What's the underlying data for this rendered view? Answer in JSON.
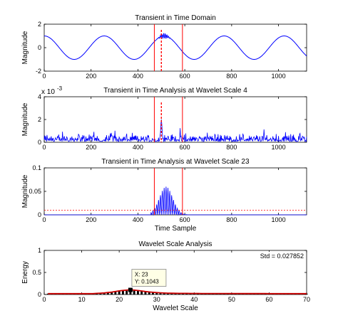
{
  "colors": {
    "signal": "#0000ff",
    "marker": "#ff0000",
    "threshold": "#ff0000",
    "energy_bars": "#000000",
    "energy_curve": "#cc0000",
    "axes": "#000000",
    "background": "#ffffff"
  },
  "chart_data": [
    {
      "type": "line",
      "title": "Transient in Time Domain",
      "xlabel": "",
      "ylabel": "Magnitude",
      "xlim": [
        0,
        1120
      ],
      "ylim": [
        -2,
        2
      ],
      "xticks": [
        "0",
        "200",
        "400",
        "600",
        "800",
        "1000"
      ],
      "yticks": [
        "-2",
        "0",
        "2"
      ],
      "series": [
        {
          "kind": "sinusoid",
          "amplitude": 1,
          "period": 256,
          "phase_deg": 90,
          "x_range": [
            0,
            1120
          ],
          "transient": {
            "center": 512,
            "width": 18,
            "amplitude": 0.25
          }
        }
      ],
      "markers": {
        "red_lines_x": [
          470,
          590
        ],
        "dashed_line_x": 500
      }
    },
    {
      "type": "line",
      "title": "Transient in Time Analysis at Wavelet Scale 4",
      "exponent_label": "x 10",
      "exponent_power": "-3",
      "xlabel": "",
      "ylabel": "Magnitude",
      "xlim": [
        0,
        1120
      ],
      "ylim": [
        0,
        4
      ],
      "xticks": [
        "0",
        "200",
        "400",
        "600",
        "800",
        "1000"
      ],
      "yticks": [
        "0",
        "2",
        "4"
      ],
      "series": [
        {
          "kind": "noise",
          "baseline": 0.35,
          "spread": 0.3,
          "peak": {
            "x": 500,
            "value": 2.0
          }
        }
      ],
      "markers": {
        "red_lines_x": [
          470,
          590
        ],
        "dashed_line_x": 500
      }
    },
    {
      "type": "line",
      "title": "Transient in Time Analysis at Wavelet Scale 23",
      "xlabel": "Time Sample",
      "ylabel": "Magnitude",
      "xlim": [
        0,
        1120
      ],
      "ylim": [
        0,
        0.1
      ],
      "xticks": [
        "0",
        "200",
        "400",
        "600",
        "800",
        "1000"
      ],
      "yticks": [
        "0",
        "0.05",
        "0.1"
      ],
      "series": [
        {
          "kind": "oscillating_burst",
          "start": 455,
          "end": 610,
          "peak_x": 520,
          "peak_value": 0.06,
          "period": 8
        }
      ],
      "threshold": 0.01,
      "markers": {
        "red_lines_x": [
          470,
          590
        ]
      }
    },
    {
      "type": "bar",
      "title": "Wavelet Scale Analysis",
      "xlabel": "Wavelet Scale",
      "ylabel": "Energy",
      "xlim": [
        0,
        70
      ],
      "ylim": [
        0,
        1
      ],
      "xticks": [
        "0",
        "10",
        "20",
        "30",
        "40",
        "50",
        "60",
        "70"
      ],
      "yticks": [
        "0",
        "0.5",
        "1"
      ],
      "x": [
        1,
        2,
        3,
        4,
        5,
        6,
        7,
        8,
        9,
        10,
        11,
        12,
        13,
        14,
        15,
        16,
        17,
        18,
        19,
        20,
        21,
        22,
        23,
        24,
        25,
        26,
        27,
        28,
        29,
        30,
        31,
        32,
        33,
        34,
        35,
        36,
        37,
        38,
        39,
        40,
        41,
        42,
        43,
        44,
        45,
        46,
        47,
        48,
        49,
        50,
        51,
        52,
        53,
        54,
        55,
        56,
        57,
        58,
        59,
        60,
        61,
        62,
        63,
        64,
        65,
        66,
        67,
        68,
        69,
        70
      ],
      "values": [
        0.02,
        0.02,
        0.02,
        0.02,
        0.02,
        0.02,
        0.02,
        0.02,
        0.02,
        0.02,
        0.02,
        0.02,
        0.02,
        0.025,
        0.03,
        0.035,
        0.045,
        0.055,
        0.07,
        0.082,
        0.092,
        0.1,
        0.1043,
        0.1,
        0.09,
        0.08,
        0.068,
        0.058,
        0.05,
        0.043,
        0.038,
        0.034,
        0.031,
        0.029,
        0.027,
        0.026,
        0.025,
        0.025,
        0.024,
        0.024,
        0.024,
        0.023,
        0.023,
        0.023,
        0.023,
        0.022,
        0.022,
        0.022,
        0.022,
        0.022,
        0.022,
        0.022,
        0.021,
        0.021,
        0.021,
        0.021,
        0.021,
        0.021,
        0.021,
        0.02,
        0.02,
        0.02,
        0.02,
        0.02,
        0.02,
        0.02,
        0.02,
        0.02,
        0.02,
        0.02
      ],
      "annotation": {
        "std_label": "Std = 0.027852",
        "datatip_x": "X: 23",
        "datatip_y": "Y: 0.1043",
        "x": 23,
        "y": 0.1043
      }
    }
  ]
}
